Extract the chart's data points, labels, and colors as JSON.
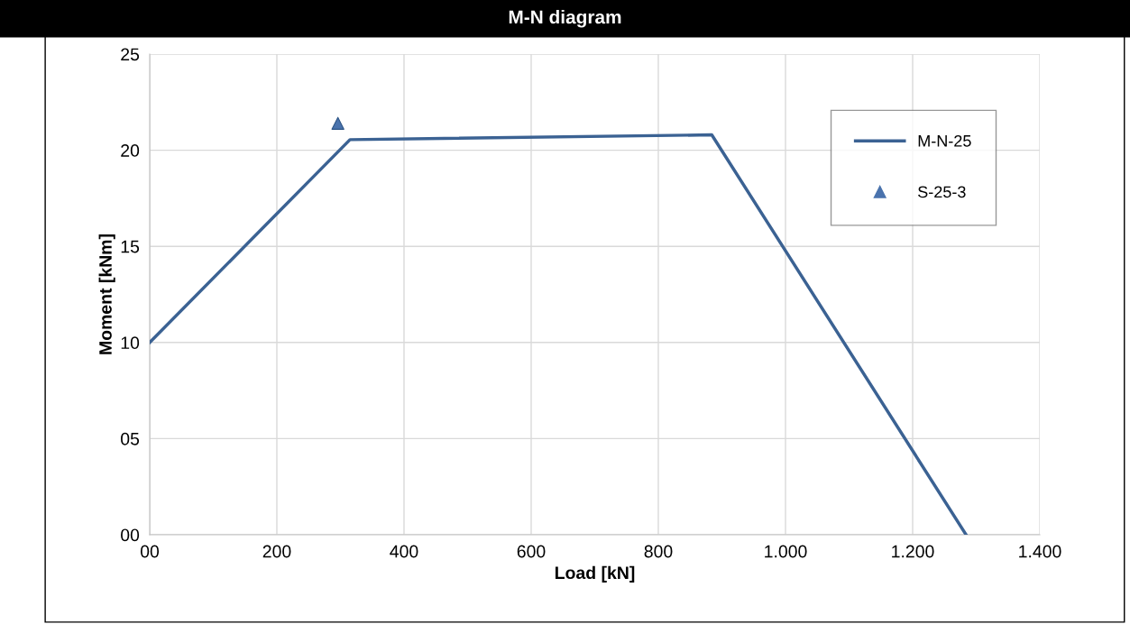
{
  "chart_data": {
    "type": "line",
    "title": "M-N diagram",
    "xlabel": "Load [kN]",
    "ylabel": "Moment [kNm]",
    "xlim": [
      0,
      1400
    ],
    "ylim": [
      0,
      25
    ],
    "xticks": [
      {
        "value": 0,
        "label": "00"
      },
      200,
      400,
      600,
      800,
      {
        "value": 1000,
        "label": "1.000"
      },
      {
        "value": 1200,
        "label": "1.200"
      },
      {
        "value": 1400,
        "label": "1.400"
      }
    ],
    "yticks": [
      {
        "value": 0,
        "label": "00"
      },
      {
        "value": 5,
        "label": "05"
      },
      10,
      15,
      20,
      25
    ],
    "grid": true,
    "legend": "top right",
    "series": [
      {
        "name": "M-N-25",
        "color": "#3b6293",
        "marker": "none",
        "line_style": "solid",
        "x": [
          0,
          315,
          884,
          1284
        ],
        "values": [
          10.0,
          20.55,
          20.8,
          0
        ]
      },
      {
        "name": "S-25-3",
        "type": "scatter",
        "color": "#4a73ad",
        "marker": "triangle",
        "x": [
          296
        ],
        "values": [
          21.4
        ]
      }
    ]
  }
}
